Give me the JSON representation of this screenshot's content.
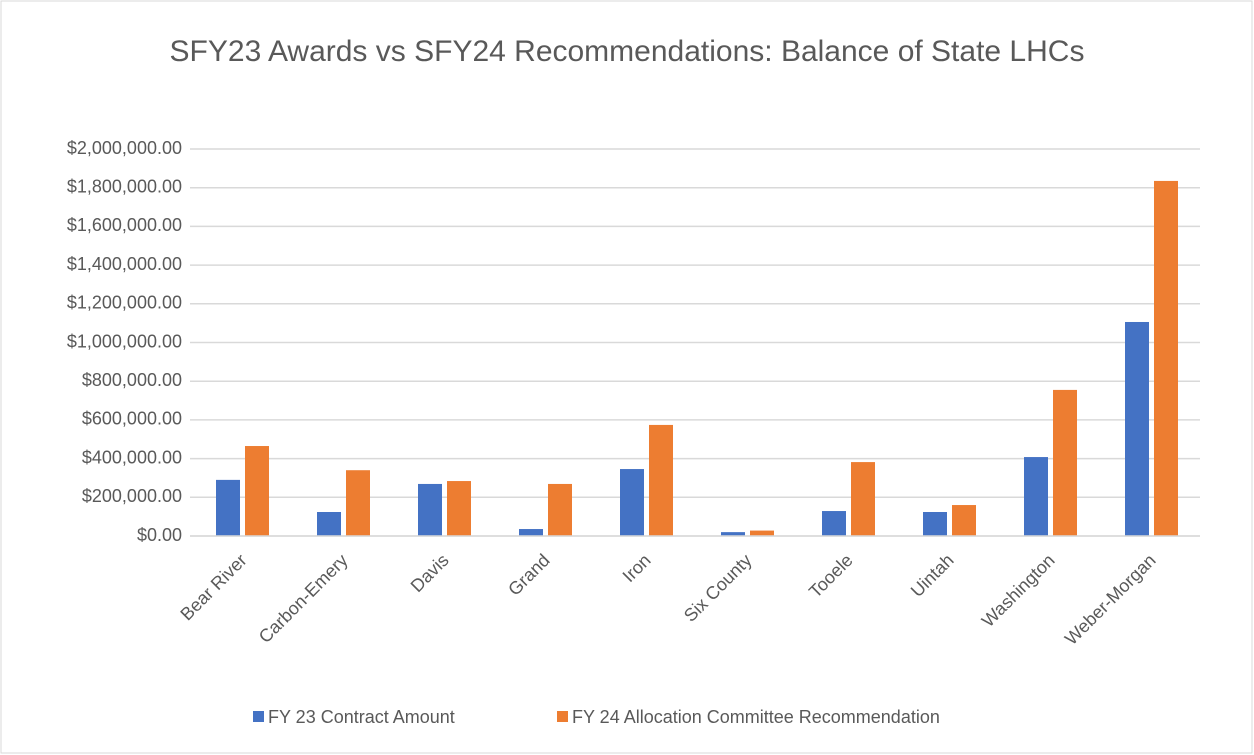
{
  "chart_data": {
    "type": "bar",
    "title": "SFY23 Awards vs SFY24 Recommendations:  Balance of State LHCs",
    "categories": [
      "Bear River",
      "Carbon-Emery",
      "Davis",
      "Grand",
      "Iron",
      "Six County",
      "Tooele",
      "Uintah",
      "Washington",
      "Weber-Morgan"
    ],
    "series": [
      {
        "name": "FY 23 Contract Amount",
        "color": "#4472c4",
        "values": [
          290000,
          124000,
          269000,
          36000,
          346000,
          20000,
          129000,
          124000,
          408000,
          1106000
        ]
      },
      {
        "name": "FY 24 Allocation Committee Recommendation",
        "color": "#ed7d31",
        "values": [
          465000,
          340000,
          284000,
          269000,
          574000,
          28000,
          382000,
          160000,
          755000,
          1835000
        ]
      }
    ],
    "ylim": [
      0,
      2000000
    ],
    "yticks": [
      {
        "value": 0,
        "label": "$0.00"
      },
      {
        "value": 200000,
        "label": "$200,000.00"
      },
      {
        "value": 400000,
        "label": "$400,000.00"
      },
      {
        "value": 600000,
        "label": "$600,000.00"
      },
      {
        "value": 800000,
        "label": "$800,000.00"
      },
      {
        "value": 1000000,
        "label": "$1,000,000.00"
      },
      {
        "value": 1200000,
        "label": "$1,200,000.00"
      },
      {
        "value": 1400000,
        "label": "$1,400,000.00"
      },
      {
        "value": 1600000,
        "label": "$1,600,000.00"
      },
      {
        "value": 1800000,
        "label": "$1,800,000.00"
      },
      {
        "value": 2000000,
        "label": "$2,000,000.00"
      }
    ],
    "grid": true,
    "legend": "bottom"
  }
}
